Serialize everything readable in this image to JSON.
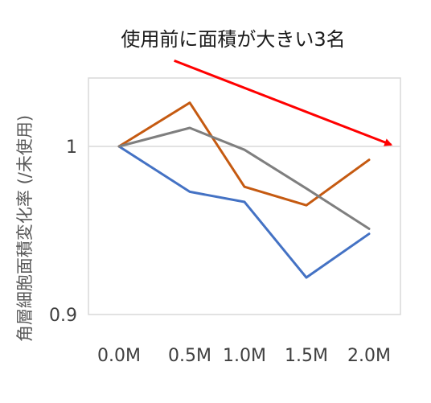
{
  "chart_data": {
    "type": "line",
    "title": "使用前に面積が大きい3名",
    "xlabel": "",
    "ylabel": "角層細胞面積変化率 (/未使用)",
    "categories": [
      "0.0M",
      "0.5M",
      "1.0M",
      "1.5M",
      "2.0M"
    ],
    "ylim": [
      0.9,
      1.04
    ],
    "yticks": [
      "0.9",
      "1"
    ],
    "ytick_values": [
      0.9,
      1.0
    ],
    "grid": "horizontal",
    "series": [
      {
        "color": "#4472C4",
        "values": [
          1.0,
          0.973,
          0.967,
          0.922,
          0.948
        ]
      },
      {
        "color": "#C55A11",
        "values": [
          1.0,
          1.026,
          0.976,
          0.965,
          0.992
        ]
      },
      {
        "color": "#7F7F7F",
        "values": [
          1.0,
          1.011,
          0.998,
          0.975,
          0.951
        ]
      }
    ],
    "annotation": {
      "type": "arrow",
      "color": "#FF0000",
      "from": [
        0.78,
        1.051
      ],
      "to": [
        4.35,
        1.001
      ]
    }
  }
}
